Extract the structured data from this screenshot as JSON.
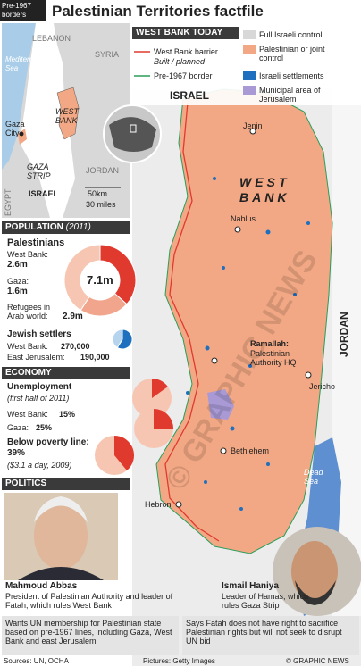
{
  "header": {
    "tag": "Pre-1967 borders",
    "title": "Palestinian Territories factfile"
  },
  "inset_map": {
    "labels": [
      "LEBANON",
      "Mediterranean Sea",
      "SYRIA",
      "WEST BANK",
      "Gaza City",
      "GAZA STRIP",
      "ISRAEL",
      "JORDAN",
      "EGYPT"
    ],
    "scale": [
      "50km",
      "30 miles"
    ]
  },
  "legend": {
    "title": "West Bank Today",
    "items": [
      "West Bank barrier",
      "Built / planned",
      "Pre-1967 border",
      "Full Israeli control",
      "Palestinian or joint control",
      "Israeli settlements",
      "Municipal area of Jerusalem"
    ]
  },
  "map": {
    "labels": [
      "ISRAEL",
      "Jenin",
      "WEST BANK",
      "Nablus",
      "Ramallah:",
      "Palestinian Authority HQ",
      "Jericho",
      "Bethlehem",
      "Dead Sea",
      "Hebron",
      "JORDAN"
    ]
  },
  "population": {
    "heading": "POPULATION",
    "year": "(2011)",
    "palestinians": {
      "title": "Palestinians",
      "total": 7.1,
      "total_label": "7.1m",
      "items": [
        {
          "name": "West Bank:",
          "value": 2.6,
          "value_label": "2.6m",
          "color": "#e03a2f"
        },
        {
          "name": "Gaza:",
          "value": 1.6,
          "value_label": "1.6m",
          "color": "#f0a58c"
        },
        {
          "name": "Refugees in Arab world:",
          "value": 2.9,
          "value_label": "2.9m",
          "color": "#f7c6b3"
        }
      ]
    },
    "settlers": {
      "title": "Jewish settlers",
      "items": [
        {
          "name": "West Bank:",
          "value": 270000,
          "value_label": "270,000",
          "color": "#1f6fbf"
        },
        {
          "name": "East Jerusalem:",
          "value": 190000,
          "value_label": "190,000",
          "color": "#b7d4ef"
        }
      ]
    }
  },
  "economy": {
    "heading": "ECONOMY",
    "unemployment": {
      "title": "Unemployment",
      "note": "(first half of 2011)",
      "items": [
        {
          "name": "West Bank:",
          "value": 15,
          "value_label": "15%"
        },
        {
          "name": "Gaza:",
          "value": 25,
          "value_label": "25%"
        }
      ]
    },
    "poverty": {
      "title": "Below poverty line:",
      "value": 39,
      "value_label": "39%",
      "note": "($3.1 a day, 2009)"
    }
  },
  "politics": {
    "heading": "POLITICS",
    "people": [
      {
        "name": "Mahmoud Abbas",
        "role": "President of Palestinian Authority and leader of Fatah, which rules West Bank",
        "position": "Wants UN membership for Palestinian state based on pre-1967 lines, including Gaza, West Bank and east Jerusalem"
      },
      {
        "name": "Ismail Haniya",
        "role": "Leader of Hamas, which rules Gaza Strip",
        "position": "Says Fatah does not have right to sacrifice Palestinian rights but will not seek to disrupt UN bid"
      }
    ]
  },
  "footer": {
    "sources": "Sources: UN, OCHA",
    "pictures": "Pictures: Getty Images",
    "copyright": "© GRAPHIC NEWS"
  },
  "watermark": "© GRAPHIC NEWS"
}
